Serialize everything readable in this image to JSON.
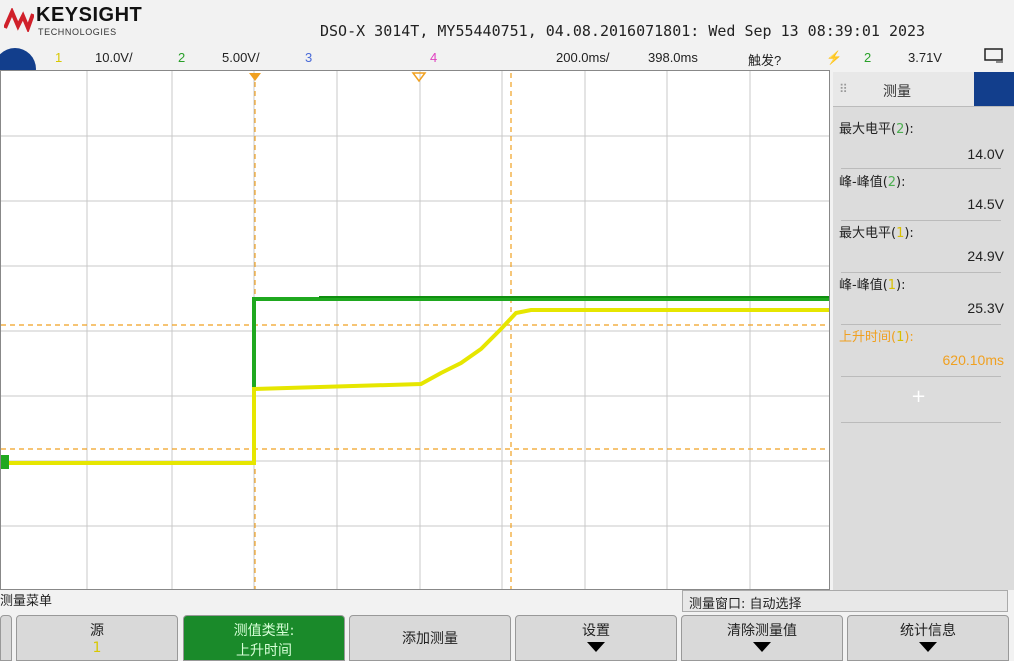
{
  "header": {
    "brand": "KEYSIGHT",
    "brand_sub": "TECHNOLOGIES",
    "model_line": "DSO-X 3014T, MY55440751, 04.08.2016071801: Wed Sep 13 08:39:01 2023"
  },
  "channel_row": {
    "ch1_num": "1",
    "ch1_scale": "10.0V/",
    "ch2_num": "2",
    "ch2_scale": "5.00V/",
    "ch3_num": "3",
    "ch4_num": "4",
    "timebase": "200.0ms/",
    "delay": "398.0ms",
    "trigger_label": "触发?",
    "trig_icon": "⚡",
    "trig_ch": "2",
    "trig_level": "3.71V"
  },
  "side_panel": {
    "title": "测量",
    "items": [
      {
        "label_a": "最大电平(",
        "ch": "2",
        "label_b": "):",
        "value": "14.0V"
      },
      {
        "label_a": "峰-峰值(",
        "ch": "2",
        "label_b": "):",
        "value": "14.5V"
      },
      {
        "label_a": "最大电平(",
        "ch": "1",
        "label_b": "):",
        "value": "24.9V"
      },
      {
        "label_a": "峰-峰值(",
        "ch": "1",
        "label_b": "):",
        "value": "25.3V"
      },
      {
        "label_a": "上升时间(",
        "ch": "1",
        "label_b": "):",
        "value": "620.10ms"
      }
    ],
    "add_symbol": "+"
  },
  "bottom": {
    "menu_label": "测量菜单",
    "measure_window": "测量窗口: 自动选择",
    "softkeys": [
      {
        "line1": "源",
        "line2": "1"
      },
      {
        "line1": "测值类型:",
        "line2": "上升时间"
      },
      {
        "line1": "添加测量",
        "line2": ""
      },
      {
        "line1": "设置",
        "line2": ""
      },
      {
        "line1": "清除测量值",
        "line2": ""
      },
      {
        "line1": "统计信息",
        "line2": ""
      }
    ]
  },
  "colors": {
    "ch1": "#e6e600",
    "ch2": "#1fa81f",
    "ch3": "#4a6bd8",
    "ch4": "#e040c0",
    "cursor": "#f0a020",
    "grid": "#c8c8c8"
  },
  "icons": [
    "keysight-logo-icon",
    "trigger-icon",
    "dropdown-arrow-icon",
    "plus-icon"
  ]
}
